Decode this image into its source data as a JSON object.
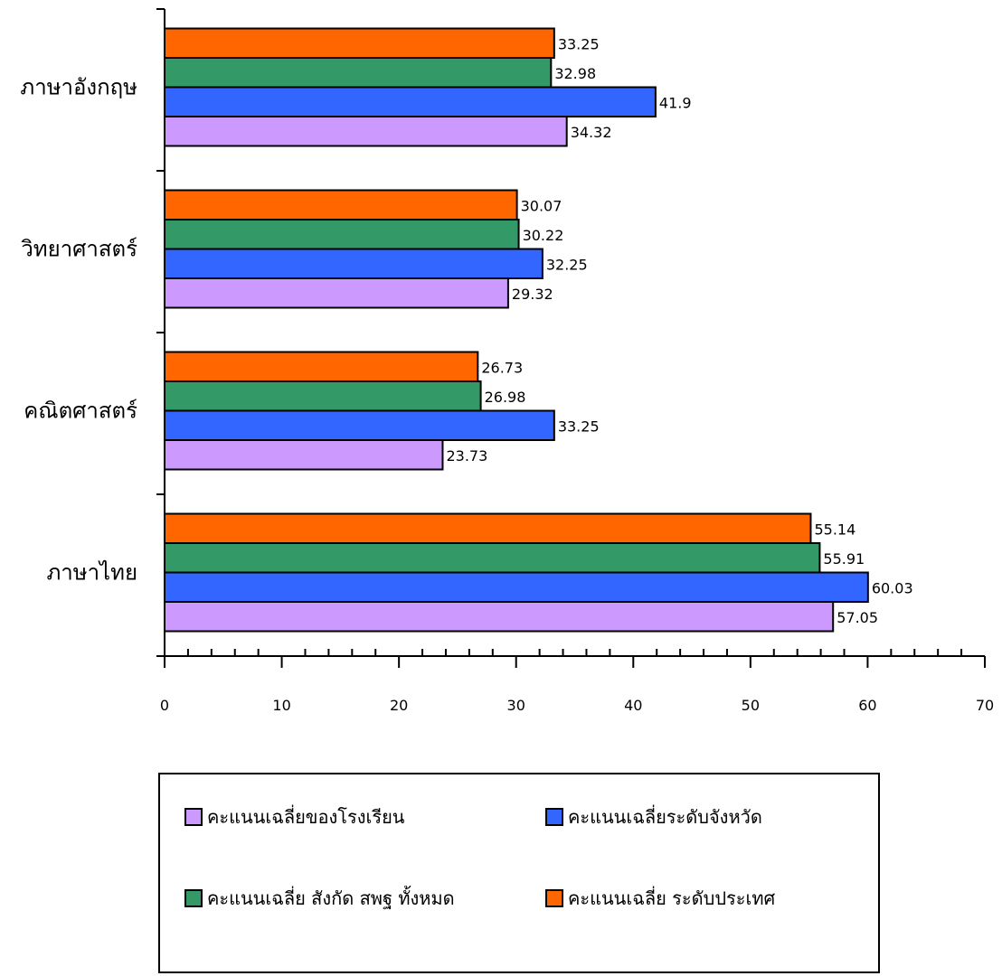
{
  "chart_data": {
    "type": "bar",
    "orientation": "horizontal",
    "categories": [
      "ภาษาไทย",
      "คณิตศาสตร์",
      "วิทยาศาสตร์",
      "ภาษาอังกฤษ"
    ],
    "series": [
      {
        "name": "คะแนนเฉลี่ยของโรงเรียน",
        "color": "#CC99FF",
        "values": [
          57.05,
          23.73,
          29.32,
          34.32
        ]
      },
      {
        "name": "คะแนนเฉลี่ยระดับจังหวัด",
        "color": "#3366FF",
        "values": [
          60.03,
          33.25,
          32.25,
          41.9
        ]
      },
      {
        "name": "คะแนนเฉลี่ย สังกัด สพฐ ทั้งหมด",
        "color": "#339966",
        "values": [
          55.91,
          26.98,
          30.22,
          32.98
        ]
      },
      {
        "name": "คะแนนเฉลี่ย ระดับประเทศ",
        "color": "#FF6600",
        "values": [
          55.14,
          26.73,
          30.07,
          33.25
        ]
      }
    ],
    "xlim": [
      0,
      70
    ],
    "xticks": [
      0,
      10,
      20,
      30,
      40,
      50,
      60,
      70
    ],
    "grid": false,
    "legend_position": "bottom"
  }
}
